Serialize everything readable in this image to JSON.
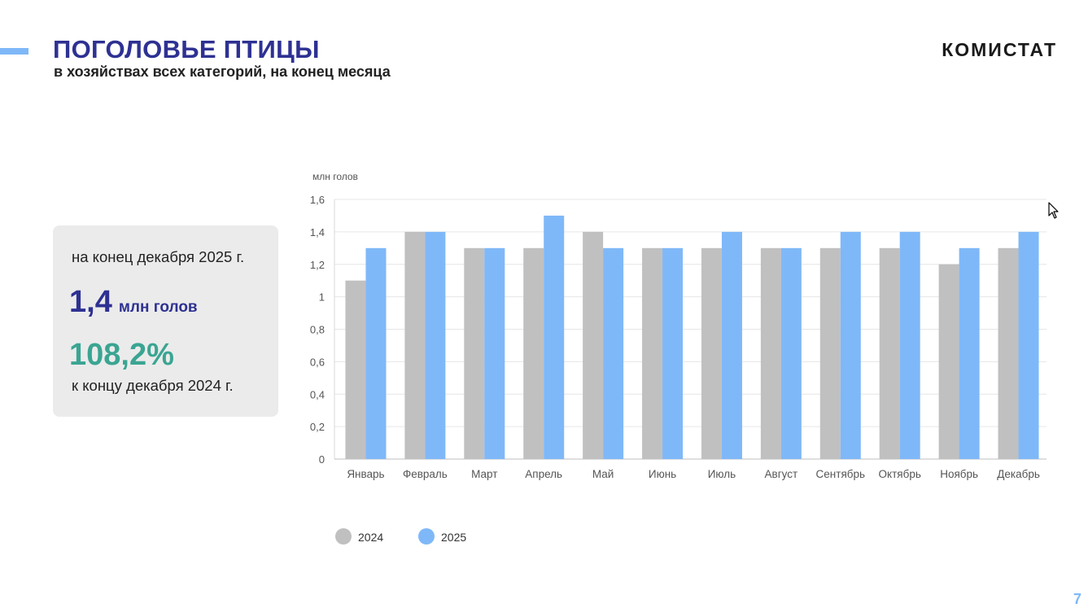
{
  "header": {
    "title": "ПОГОЛОВЬЕ ПТИЦЫ",
    "subtitle": "в хозяйствах всех категорий, на конец месяца",
    "logo_text": "КОМИСТАТ",
    "page_number": "7"
  },
  "summary": {
    "period": "на конец декабря 2025 г.",
    "value": "1,4",
    "unit": "млн голов",
    "percent": "108,2%",
    "comparison": "к концу декабря 2024 г."
  },
  "colors": {
    "title": "#2e3192",
    "accent": "#7fb8f8",
    "percent": "#3aa592",
    "series_2024": "#c0c0c0",
    "series_2025": "#7fb8f8"
  },
  "chart_data": {
    "type": "bar",
    "ylabel": "млн голов",
    "ylim": [
      0,
      1.6
    ],
    "yticks": [
      "0",
      "0,2",
      "0,4",
      "0,6",
      "0,8",
      "1",
      "1,2",
      "1,4",
      "1,6"
    ],
    "categories": [
      "Январь",
      "Февраль",
      "Март",
      "Апрель",
      "Май",
      "Июнь",
      "Июль",
      "Август",
      "Сентябрь",
      "Октябрь",
      "Ноябрь",
      "Декабрь"
    ],
    "series": [
      {
        "name": "2024",
        "values": [
          1.1,
          1.4,
          1.3,
          1.3,
          1.4,
          1.3,
          1.3,
          1.3,
          1.3,
          1.3,
          1.2,
          1.3
        ]
      },
      {
        "name": "2025",
        "values": [
          1.3,
          1.4,
          1.3,
          1.5,
          1.3,
          1.3,
          1.4,
          1.3,
          1.4,
          1.4,
          1.3,
          1.4
        ]
      }
    ],
    "grid": true,
    "legend": "bottom-left"
  }
}
